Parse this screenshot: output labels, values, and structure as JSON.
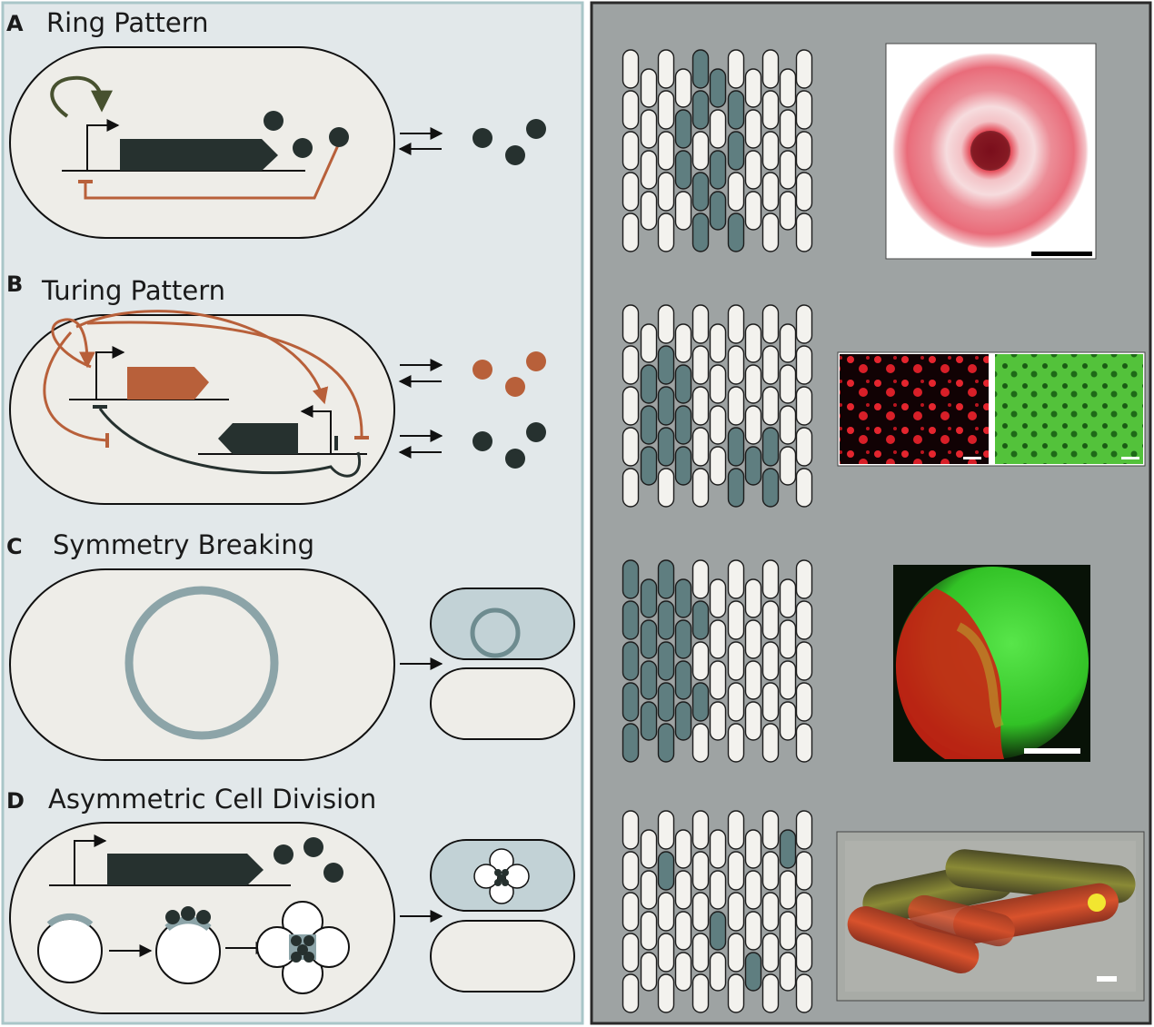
{
  "panels": [
    {
      "letter": "A",
      "title": "Ring Pattern"
    },
    {
      "letter": "B",
      "title": "Turing Pattern"
    },
    {
      "letter": "C",
      "title": "Symmetry Breaking"
    },
    {
      "letter": "D",
      "title": "Asymmetric Cell Division"
    }
  ],
  "colors": {
    "left_background": "#e2e8ea",
    "right_background": "#9ea3a3",
    "cell_fill": "#eeede8",
    "gene_dark": "#26312f",
    "gene_orange": "#b8603a",
    "positive_loop": "#47512f",
    "ring_protein": "#8ca4a8",
    "teal_cell": "#5f7e80",
    "white_cell": "#f3f2ee"
  },
  "micrographs": [
    {
      "row": "A",
      "content": "red fluorescent ring with dense center",
      "scale_bar": true
    },
    {
      "row": "B",
      "content": "red spots beside green network",
      "scale_bar": true
    },
    {
      "row": "C",
      "content": "red and green sectored colony",
      "scale_bar": true
    },
    {
      "row": "D",
      "content": "rod cells, yellow-green and red, phase contrast overlay",
      "scale_bar": true
    }
  ]
}
